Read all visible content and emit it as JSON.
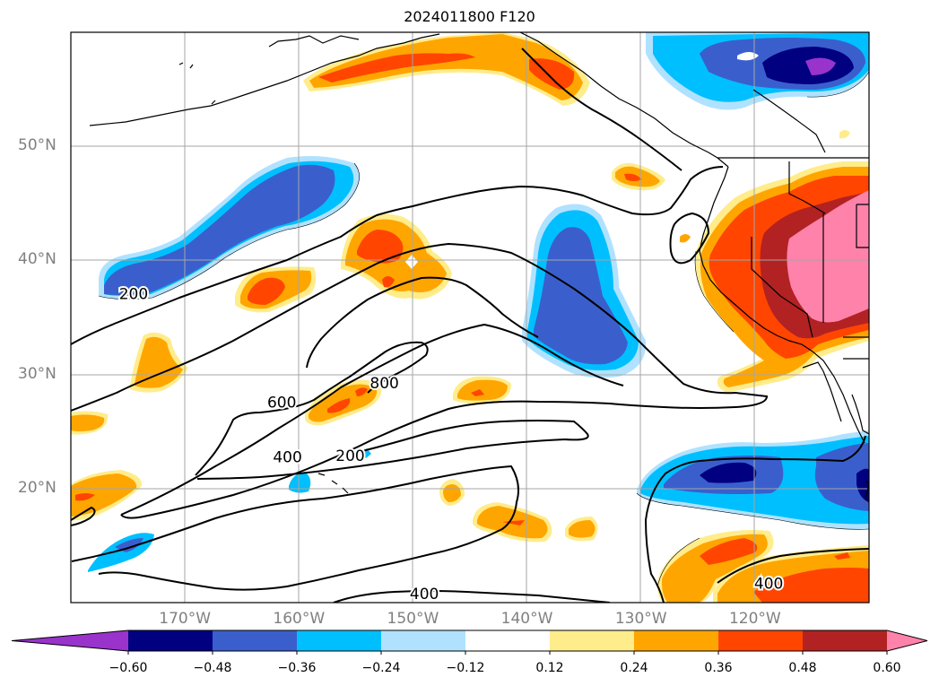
{
  "title": "2024011800 F120",
  "lat_labels": [
    {
      "text": "50°N",
      "lat": 50
    },
    {
      "text": "40°N",
      "lat": 40
    },
    {
      "text": "30°N",
      "lat": 30
    },
    {
      "text": "20°N",
      "lat": 20
    }
  ],
  "lon_labels": [
    {
      "text": "170°W",
      "lon": -170
    },
    {
      "text": "160°W",
      "lon": -160
    },
    {
      "text": "150°W",
      "lon": -150
    },
    {
      "text": "140°W",
      "lon": -140
    },
    {
      "text": "130°W",
      "lon": -130
    },
    {
      "text": "120°W",
      "lon": -120
    }
  ],
  "map_extent": {
    "lon_min": -180,
    "lon_max": -110,
    "lat_min": 10,
    "lat_max": 60
  },
  "gridlines": true,
  "contour_labels": [
    {
      "text": "200",
      "lon": -174.5,
      "lat": 37
    },
    {
      "text": "600",
      "lon": -161.5,
      "lat": 27.5
    },
    {
      "text": "800",
      "lon": -152.5,
      "lat": 29.2
    },
    {
      "text": "400",
      "lon": -161,
      "lat": 22.7
    },
    {
      "text": "200",
      "lon": -155.5,
      "lat": 22.8
    },
    {
      "text": "400",
      "lon": -149,
      "lat": 10.7
    },
    {
      "text": "400",
      "lon": -118.8,
      "lat": 11.6
    }
  ],
  "colorbar": {
    "levels": [
      "−0.60",
      "−0.48",
      "−0.36",
      "−0.24",
      "−0.12",
      "0.12",
      "0.24",
      "0.36",
      "0.48",
      "0.60"
    ],
    "colors": [
      "#9933cc",
      "#000080",
      "#3a5fcd",
      "#00bfff",
      "#b0e2ff",
      "#ffffff",
      "#ffec8b",
      "#ffa500",
      "#ff4500",
      "#b22222",
      "#ff82ab"
    ]
  }
}
